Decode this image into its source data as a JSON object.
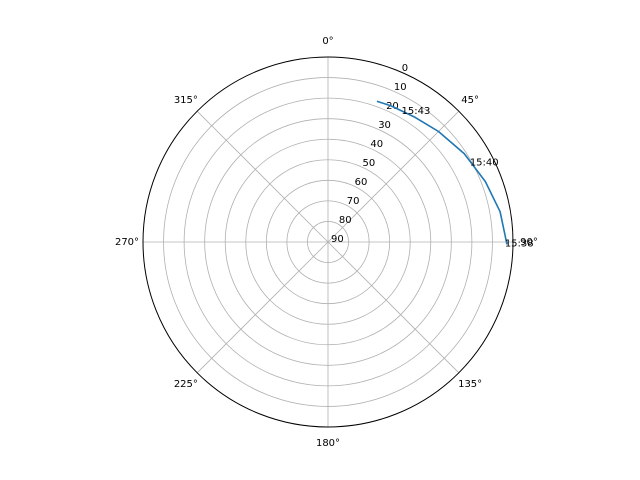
{
  "chart_data": {
    "type": "line",
    "projection": "polar",
    "theta_zero_location": "N",
    "theta_direction": "clockwise",
    "angle_tick_labels": [
      "0°",
      "45°",
      "90°",
      "135°",
      "180°",
      "225°",
      "270°",
      "315°"
    ],
    "radial_axis": {
      "label_meaning": "elevation (90 at center, 0 at rim)",
      "tick_labels": [
        "0",
        "10",
        "20",
        "30",
        "40",
        "50",
        "60",
        "70",
        "80",
        "90"
      ],
      "range": [
        0,
        90
      ],
      "inverted": true
    },
    "grid": true,
    "series": [
      {
        "color": "#1f77b4",
        "points": [
          {
            "azimuth": 90.5,
            "elevation": 3
          },
          {
            "azimuth": 80,
            "elevation": 5
          },
          {
            "azimuth": 69,
            "elevation": 8
          },
          {
            "azimuth": 57,
            "elevation": 11
          },
          {
            "azimuth": 45,
            "elevation": 14
          },
          {
            "azimuth": 35,
            "elevation": 16
          },
          {
            "azimuth": 25,
            "elevation": 17
          },
          {
            "azimuth": 19.5,
            "elevation": 17.5
          }
        ]
      }
    ],
    "annotations": [
      {
        "text": "15:38",
        "azimuth": 90.5,
        "elevation": 3
      },
      {
        "text": "15:40",
        "azimuth": 61,
        "elevation": 10
      },
      {
        "text": "15:43",
        "azimuth": 30,
        "elevation": 16.5
      }
    ]
  }
}
